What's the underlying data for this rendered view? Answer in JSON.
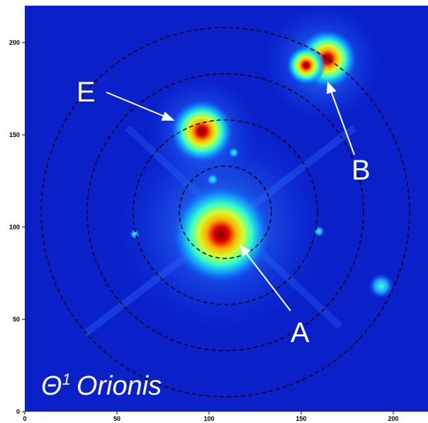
{
  "image": {
    "caption": {
      "symbol": "Θ",
      "superscript": "1",
      "name": "Orionis"
    },
    "labels": [
      "A",
      "B",
      "E"
    ],
    "axes": {
      "xticks": [
        0,
        50,
        100,
        150,
        200
      ],
      "yticks": [
        0,
        50,
        100,
        150,
        200
      ]
    }
  }
}
